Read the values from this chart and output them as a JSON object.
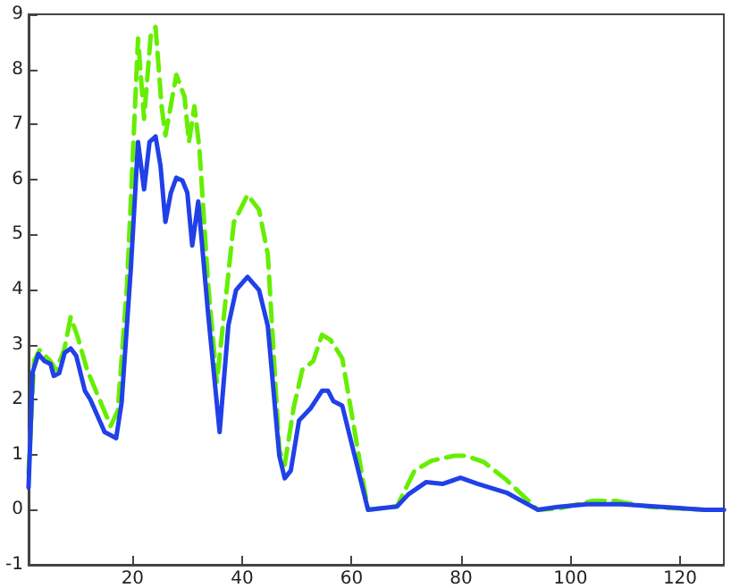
{
  "chart_data": {
    "type": "line",
    "xlim": [
      1,
      128
    ],
    "xticks": [
      20,
      40,
      60,
      80,
      100,
      120
    ],
    "ylim": [
      -1,
      9
    ],
    "yticks": [
      -1,
      0,
      1,
      2,
      3,
      4,
      5,
      6,
      7,
      8,
      9
    ],
    "grid": false,
    "marker": "none",
    "series": [
      {
        "color": "#66ee00",
        "line_style": "dashed",
        "x": [
          1,
          2,
          3,
          5,
          6,
          7.5,
          8.7,
          10,
          11.7,
          16,
          17.3,
          19,
          21,
          22.1,
          23.3,
          24.2,
          25.3,
          26,
          28,
          29.5,
          30.3,
          31.3,
          32.2,
          33.8,
          35.4,
          37.3,
          38.5,
          41,
          43.1,
          44.7,
          46.8,
          47.8,
          49.4,
          51,
          53,
          54.6,
          56.2,
          58.3,
          60.4,
          63,
          68.3,
          71.5,
          74.6,
          78.8,
          80.9,
          84.1,
          88.3,
          94,
          97.7,
          104,
          108.2,
          114.5,
          124.5,
          128
        ],
        "values": [
          0.66,
          2.7,
          2.9,
          2.7,
          2.54,
          2.9,
          3.5,
          3.13,
          2.54,
          1.52,
          1.8,
          4.1,
          8.56,
          7.1,
          8.6,
          8.77,
          7.33,
          6.8,
          7.9,
          7.5,
          6.68,
          7.33,
          6.57,
          4.1,
          2.32,
          4.1,
          5.22,
          5.72,
          5.45,
          4.64,
          1.09,
          0.82,
          1.84,
          2.54,
          2.7,
          3.18,
          3.08,
          2.75,
          1.52,
          0.0,
          0.06,
          0.71,
          0.89,
          0.98,
          0.98,
          0.87,
          0.54,
          0.0,
          0.02,
          0.16,
          0.16,
          0.05,
          0.0,
          0.0
        ]
      },
      {
        "color": "#2040e8",
        "line_style": "solid",
        "x": [
          1,
          1.75,
          2.8,
          3.9,
          5,
          5.6,
          6.6,
          7.6,
          8.7,
          9.7,
          11.3,
          12.3,
          14.9,
          17,
          18,
          19.7,
          21,
          22.1,
          23.1,
          24.2,
          25.1,
          26,
          27,
          28,
          29.1,
          30,
          30.9,
          32,
          33.8,
          35.9,
          37.5,
          38.9,
          41,
          43.1,
          44.7,
          46.8,
          47.8,
          48.9,
          50.4,
          52.5,
          54.6,
          55.7,
          56.7,
          58.3,
          63,
          68.3,
          70.4,
          73.6,
          76.7,
          79.9,
          83,
          88.3,
          94,
          97.7,
          103,
          109.3,
          116.6,
          124.5,
          128
        ],
        "values": [
          0.4,
          2.5,
          2.83,
          2.7,
          2.65,
          2.43,
          2.48,
          2.85,
          2.93,
          2.8,
          2.16,
          2.0,
          1.41,
          1.3,
          1.95,
          4.4,
          6.68,
          5.82,
          6.68,
          6.78,
          6.25,
          5.23,
          5.76,
          6.03,
          5.98,
          5.76,
          4.8,
          5.6,
          3.56,
          1.41,
          3.35,
          3.99,
          4.23,
          3.99,
          3.34,
          0.98,
          0.57,
          0.71,
          1.62,
          1.84,
          2.16,
          2.16,
          1.97,
          1.89,
          0.0,
          0.06,
          0.28,
          0.5,
          0.47,
          0.58,
          0.47,
          0.31,
          0.0,
          0.05,
          0.1,
          0.1,
          0.05,
          0.0,
          0.0
        ]
      }
    ]
  }
}
